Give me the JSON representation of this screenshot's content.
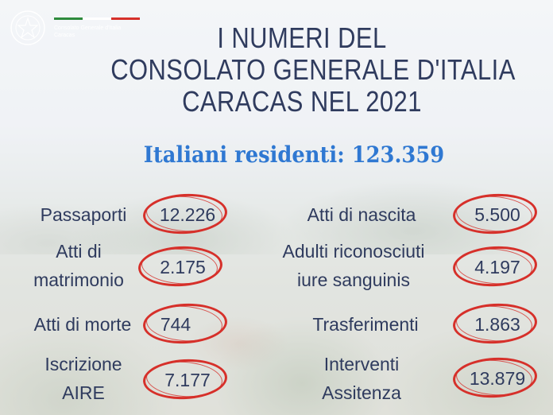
{
  "header": {
    "consolato_line1": "Consolato Generale d'Italia",
    "consolato_line2": "Caracas",
    "flag_colors": [
      "#2e8b3d",
      "#ffffff",
      "#d6302a"
    ]
  },
  "title": {
    "line1": "I NUMERI DEL",
    "line2": "CONSOLATO GENERALE D'ITALIA",
    "line3": "CARACAS NEL 2021"
  },
  "subtitle": "Italiani residenti: 123.359",
  "colors": {
    "title": "#2f3b5e",
    "subtitle": "#2f78d2",
    "circle": "#d6302a"
  },
  "stats": {
    "passaporti": {
      "label": "Passaporti",
      "value": "12.226"
    },
    "matrimonio": {
      "label_line1": "Atti di",
      "label_line2": "matrimonio",
      "value": "2.175"
    },
    "morte": {
      "label": "Atti di morte",
      "value": "744"
    },
    "aire": {
      "label_line1": "Iscrizione",
      "label_line2": "AIRE",
      "value": "7.177"
    },
    "nascita": {
      "label": "Atti di nascita",
      "value": "5.500"
    },
    "adulti": {
      "label_line1": "Adulti riconosciuti",
      "label_line2": "iure sanguinis",
      "value": "4.197"
    },
    "trasferimenti": {
      "label": "Trasferimenti",
      "value": "1.863"
    },
    "assistenza": {
      "label_line1": "Interventi",
      "label_line2": "Assitenza",
      "value": "13.879"
    }
  }
}
